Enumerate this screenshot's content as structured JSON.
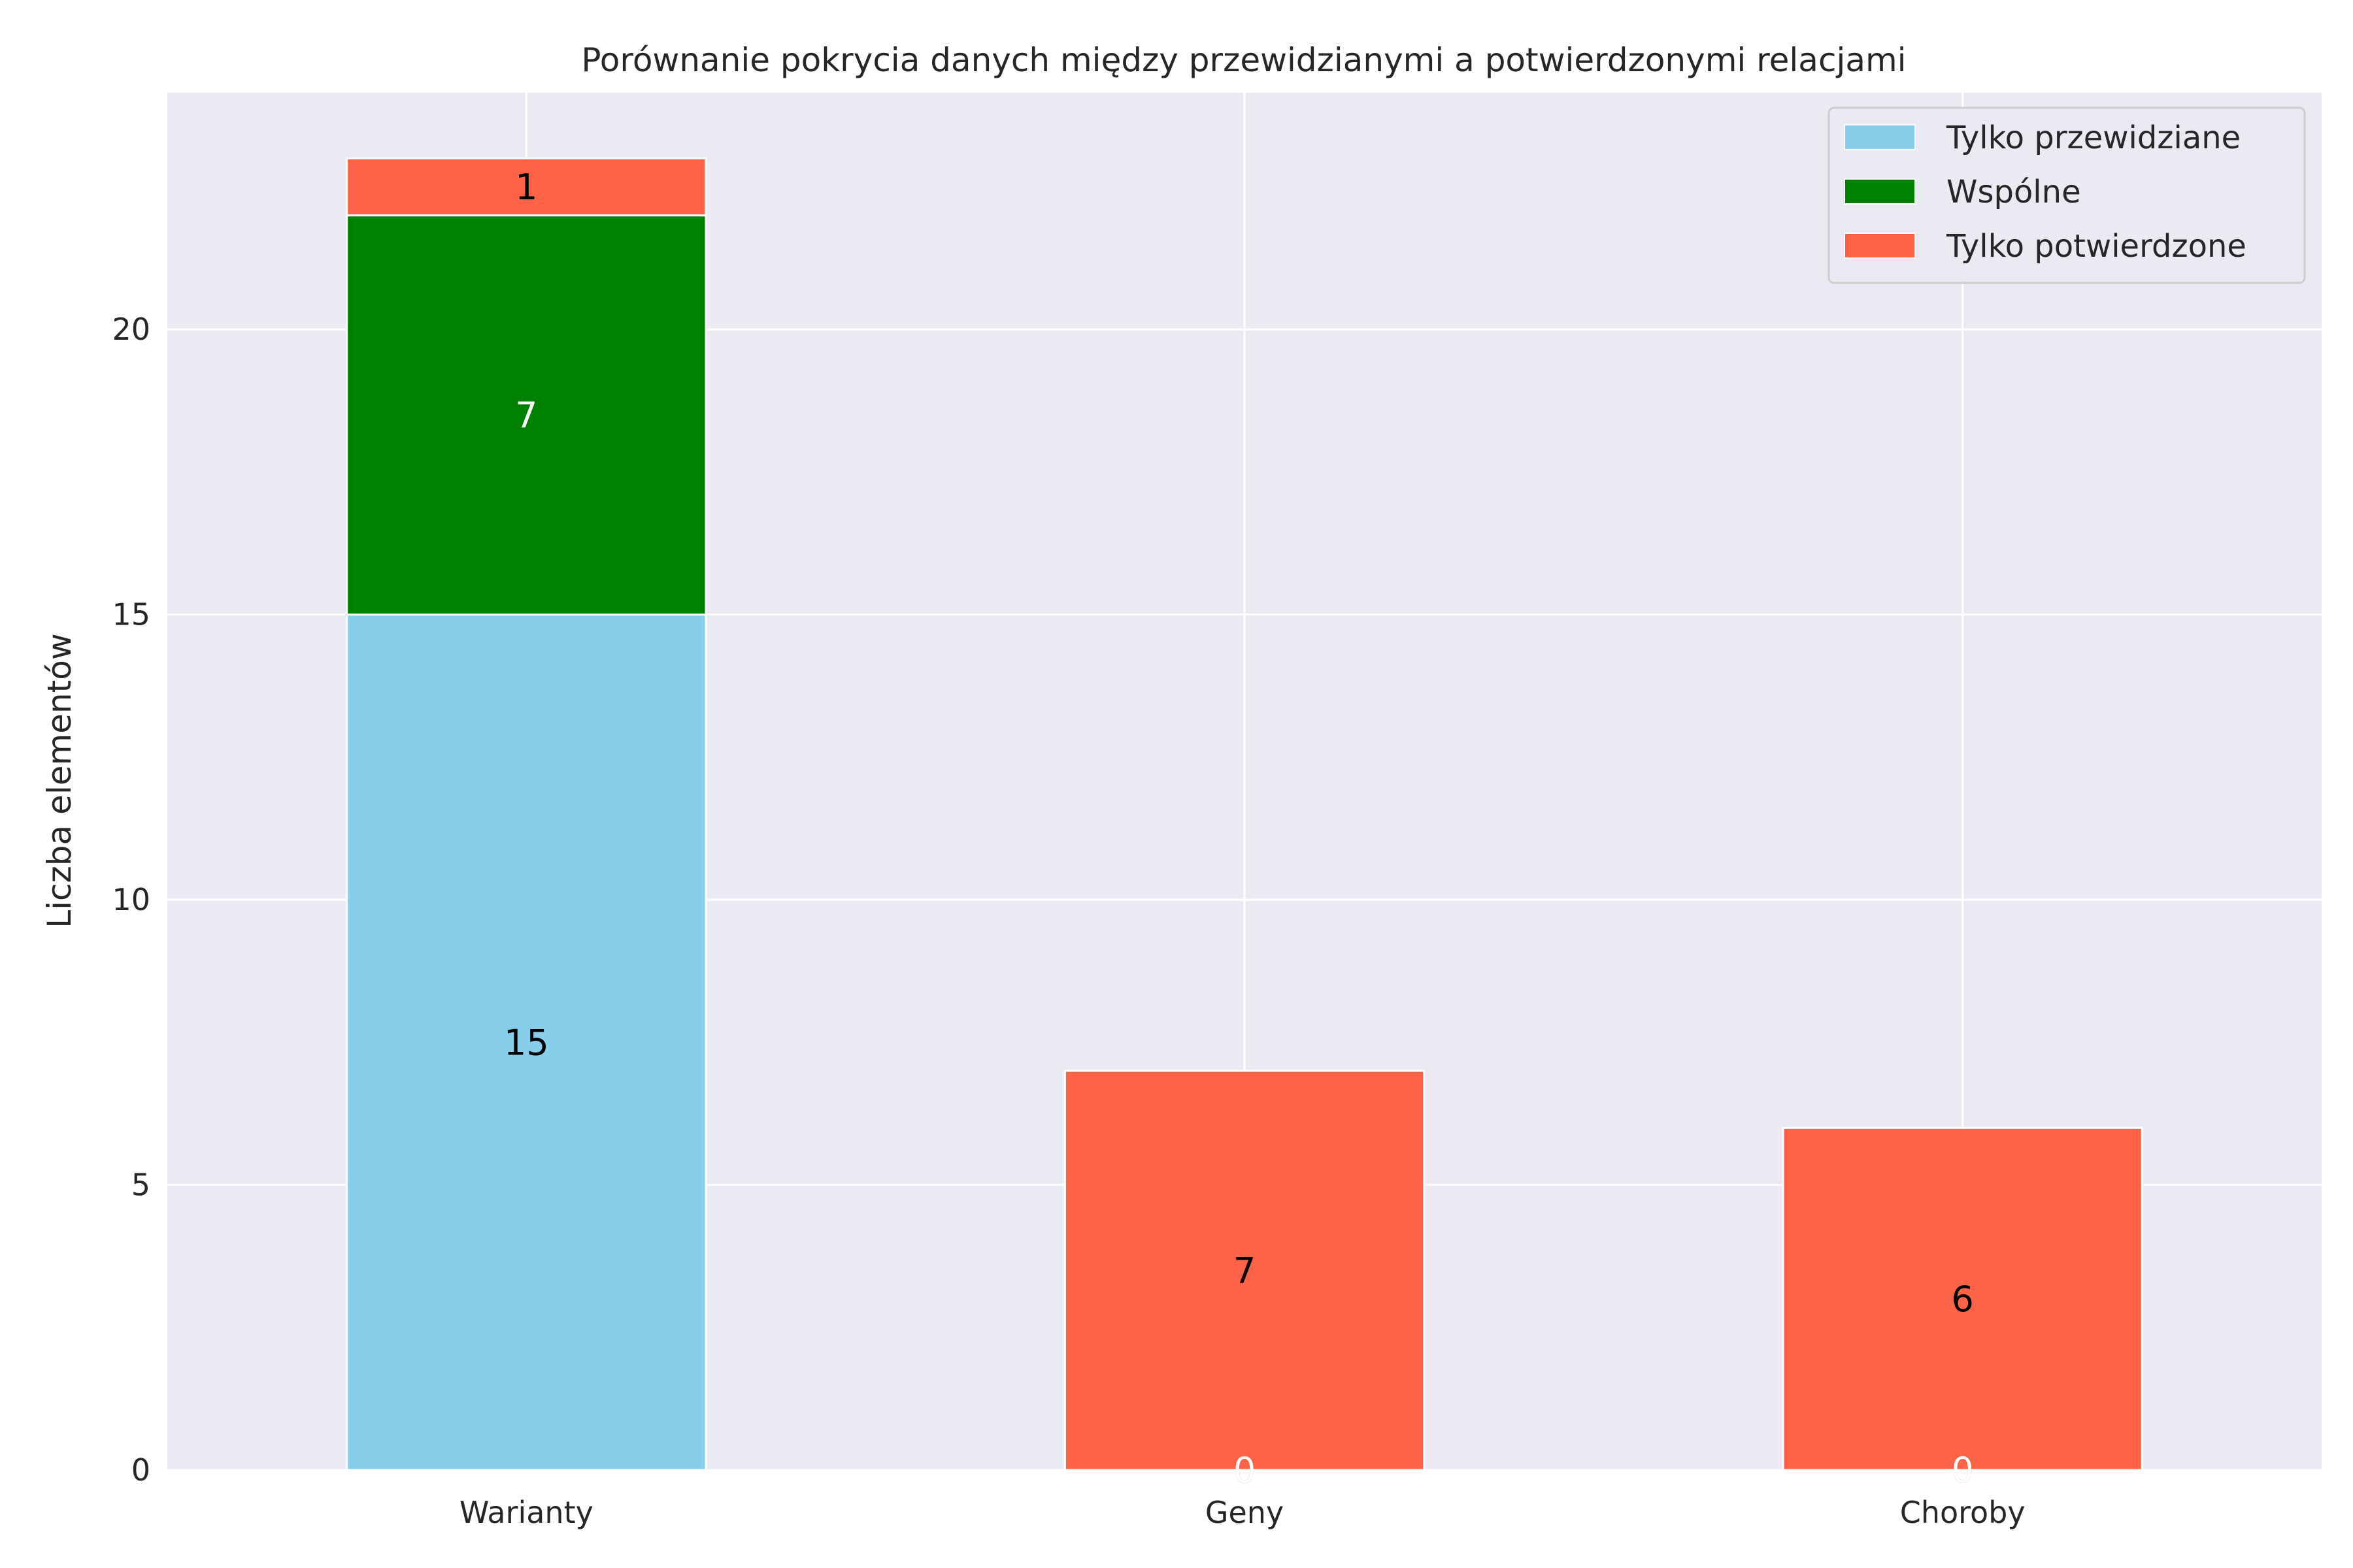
{
  "chart_data": {
    "type": "bar",
    "stacked": true,
    "title": "Porównanie pokrycia danych między przewidzianymi a potwierdzonymi relacjami",
    "xlabel": "",
    "ylabel": "Liczba elementów",
    "categories": [
      "Warianty",
      "Geny",
      "Choroby"
    ],
    "series": [
      {
        "name": "Tylko przewidziane",
        "values": [
          15,
          0,
          0
        ],
        "color": "#87CEEB",
        "label_color": "#000000"
      },
      {
        "name": "Wspólne",
        "values": [
          7,
          0,
          0
        ],
        "color": "#008000",
        "label_color": "#ffffff"
      },
      {
        "name": "Tylko potwierdzone",
        "values": [
          1,
          7,
          6
        ],
        "color": "#FF6347",
        "label_color": "#000000"
      }
    ],
    "ylim": [
      0,
      24.15
    ],
    "yticks": [
      0,
      5,
      10,
      15,
      20
    ],
    "grid": true,
    "legend_position": "top-right",
    "colors": {
      "background": "#EAEAF2",
      "grid": "#FFFFFF",
      "text": "#262626"
    }
  }
}
